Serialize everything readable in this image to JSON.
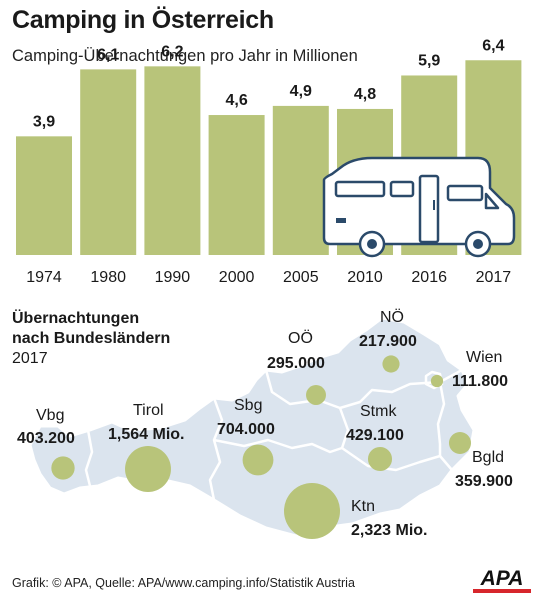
{
  "header": {
    "title": "Camping in Österreich",
    "subtitle": "Camping-Übernachtungen pro Jahr in Millionen"
  },
  "chart_data": [
    {
      "type": "bar",
      "title": "Camping in Österreich",
      "subtitle": "Camping-Übernachtungen pro Jahr in Millionen",
      "categories": [
        "1974",
        "1980",
        "1990",
        "2000",
        "2005",
        "2010",
        "2016",
        "2017"
      ],
      "values": [
        3.9,
        6.1,
        6.2,
        4.6,
        4.9,
        4.8,
        5.9,
        6.4
      ],
      "value_labels": [
        "3,9",
        "6,1",
        "6,2",
        "4,6",
        "4,9",
        "4,8",
        "5,9",
        "6,4"
      ],
      "ylim": [
        0,
        7
      ],
      "color": "#b8c47a",
      "grid": false
    },
    {
      "type": "bubble-map",
      "title": "Übernachtungen nach Bundesländern",
      "year": "2017",
      "regions": [
        {
          "name": "Vbg",
          "label": "403.200",
          "value": 403200
        },
        {
          "name": "Tirol",
          "label": "1,564 Mio.",
          "value": 1564000
        },
        {
          "name": "Sbg",
          "label": "704.000",
          "value": 704000
        },
        {
          "name": "OÖ",
          "label": "295.000",
          "value": 295000
        },
        {
          "name": "NÖ",
          "label": "217.900",
          "value": 217900
        },
        {
          "name": "Wien",
          "label": "111.800",
          "value": 111800
        },
        {
          "name": "Stmk",
          "label": "429.100",
          "value": 429100
        },
        {
          "name": "Bgld",
          "label": "359.900",
          "value": 359900
        },
        {
          "name": "Ktn",
          "label": "2,323 Mio.",
          "value": 2323000
        }
      ],
      "color": "#b8c47a"
    }
  ],
  "map_section": {
    "title_line1": "Übernachtungen",
    "title_line2": "nach Bundesländern",
    "year": "2017"
  },
  "footer": {
    "credit": "Grafik: © APA, Quelle: APA/www.camping.info/Statistik Austria",
    "logo": "APA"
  }
}
